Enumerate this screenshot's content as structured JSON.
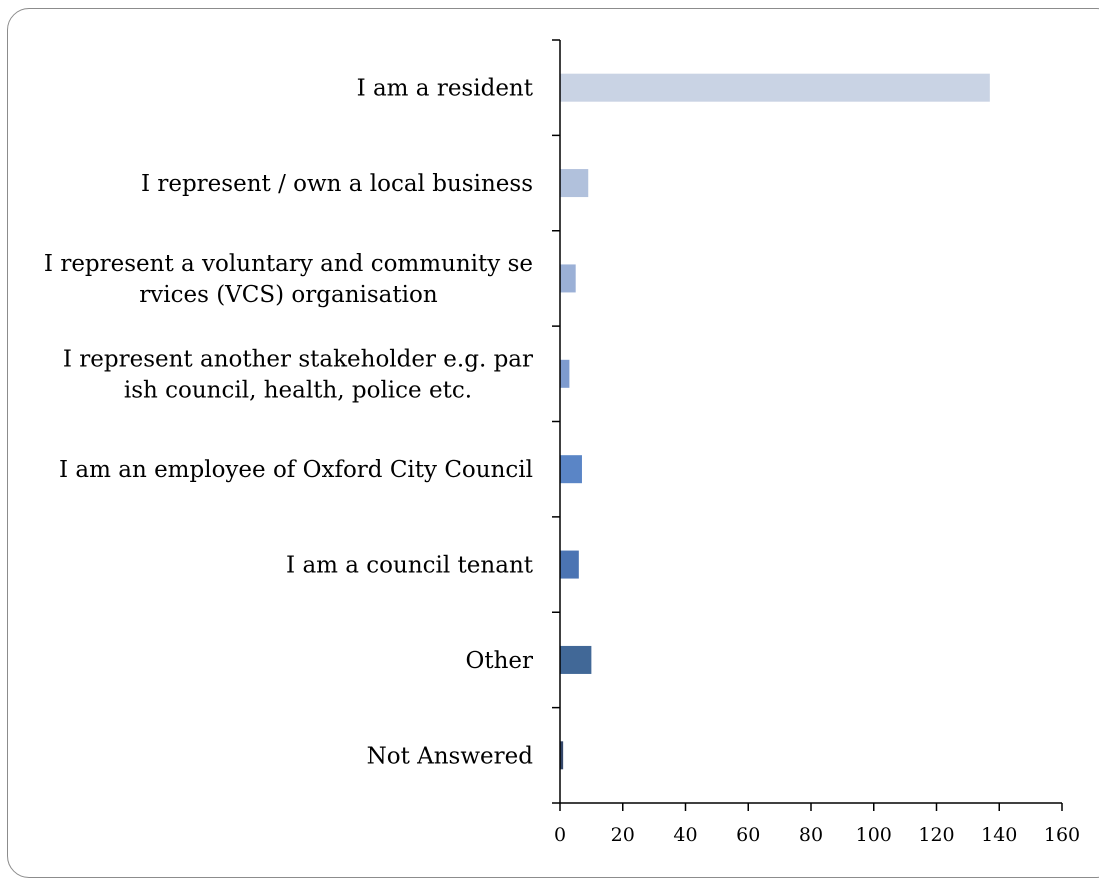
{
  "chart_data": {
    "type": "bar",
    "orientation": "horizontal",
    "title": "",
    "xlabel": "",
    "ylabel": "",
    "xlim": [
      0,
      160
    ],
    "x_ticks": [
      0,
      20,
      40,
      60,
      80,
      100,
      120,
      140,
      160
    ],
    "grid": false,
    "legend": "none",
    "categories": [
      [
        "I am a resident"
      ],
      [
        "I represent / own a local business"
      ],
      [
        "I represent a voluntary and community se",
        "rvices (VCS) organisation"
      ],
      [
        "I represent another stakeholder e.g. par",
        "ish council, health, police etc."
      ],
      [
        "I am an employee of Oxford City Council"
      ],
      [
        "I am a council tenant"
      ],
      [
        "Other"
      ],
      [
        "Not Answered"
      ]
    ],
    "values": [
      137,
      9,
      5,
      3,
      7,
      6,
      10,
      1
    ],
    "bar_colors": [
      "#c9d3e4",
      "#b1c1dc",
      "#9bb0d6",
      "#7e9bcf",
      "#5a85c6",
      "#4b74b3",
      "#416897",
      "#34476a"
    ]
  }
}
